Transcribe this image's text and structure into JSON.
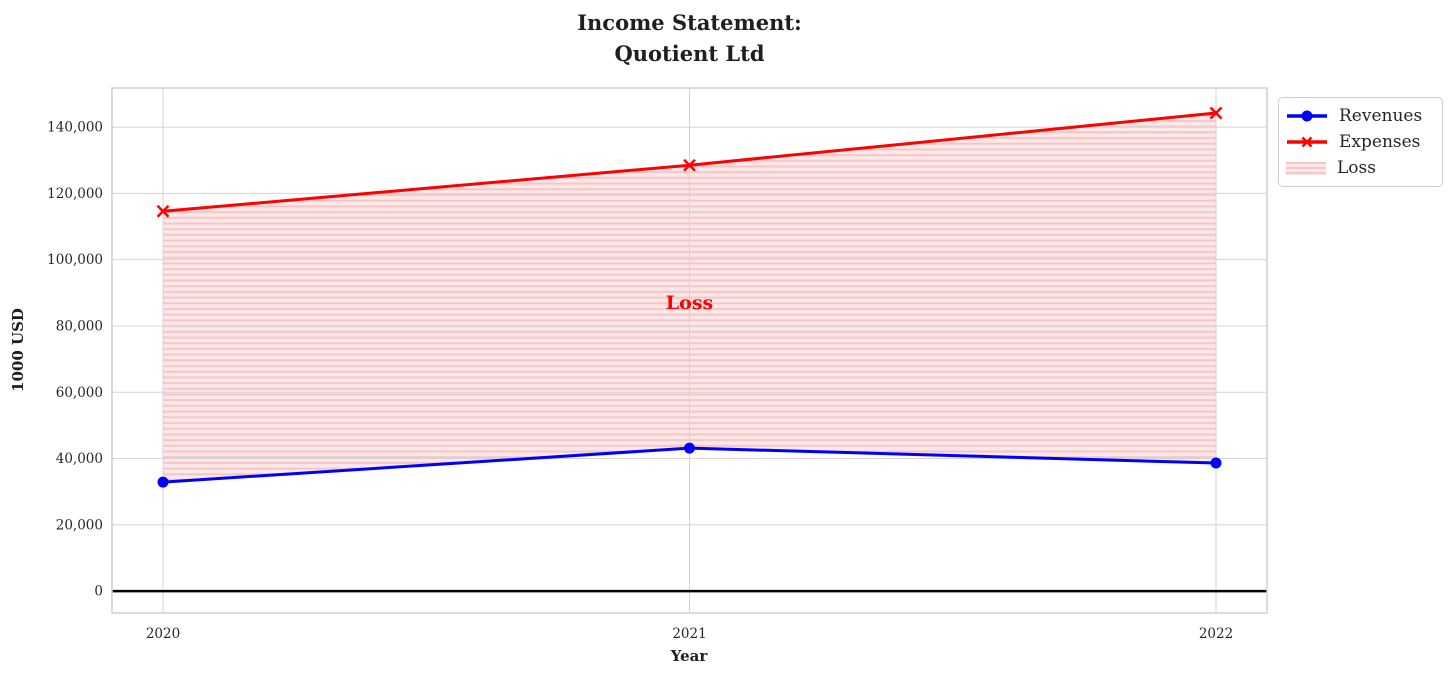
{
  "chart_data": {
    "type": "line",
    "title_lines": [
      "Income Statement:",
      "Quotient Ltd"
    ],
    "xlabel": "Year",
    "ylabel": "1000 USD",
    "categories": [
      "2020",
      "2021",
      "2022"
    ],
    "series": [
      {
        "name": "Revenues",
        "color": "#0000ff",
        "marker": "circle",
        "values": [
          32900,
          43150,
          38650
        ]
      },
      {
        "name": "Expenses",
        "color": "#ff0000",
        "marker": "x",
        "values": [
          114600,
          128500,
          144250
        ]
      }
    ],
    "fill_between": {
      "label": "Loss",
      "between": [
        "Revenues",
        "Expenses"
      ],
      "fill_color": "#fce8e8",
      "hatch_color": "#f5c6c6",
      "hatch_style": "horizontal-lines"
    },
    "annotation": {
      "text": "Loss",
      "x": "2021",
      "y": 87000,
      "color": "#ff0000"
    },
    "ylim": [
      -6600,
      151800
    ],
    "yticks": [
      0,
      20000,
      40000,
      60000,
      80000,
      100000,
      120000,
      140000
    ],
    "ytick_labels": [
      "0",
      "20,000",
      "40,000",
      "60,000",
      "80,000",
      "100,000",
      "120,000",
      "140,000"
    ],
    "zero_line": {
      "y": 0,
      "color": "#000000"
    },
    "grid": true,
    "legend": {
      "position": "outside-top-right",
      "items": [
        {
          "label": "Revenues",
          "swatch": "blue-line-circle"
        },
        {
          "label": "Expenses",
          "swatch": "red-line-x"
        },
        {
          "label": "Loss",
          "swatch": "pink-hatch"
        }
      ]
    },
    "text_color": "#262626",
    "grid_color": "#d4d4d4",
    "frame_color": "#cfcfcf"
  }
}
